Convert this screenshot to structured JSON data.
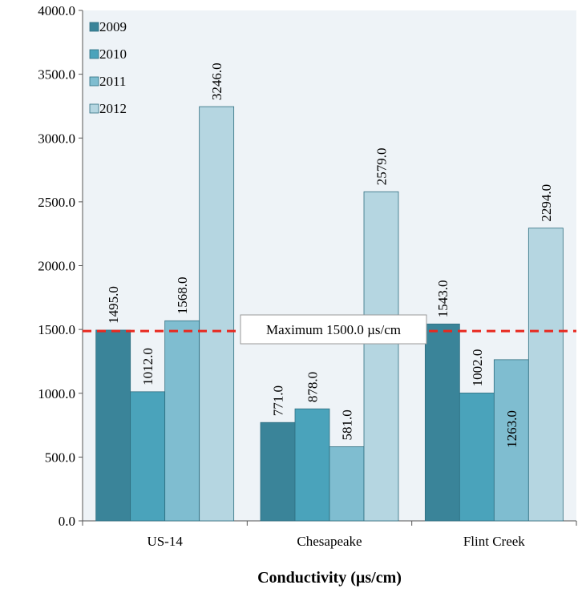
{
  "chart_data": {
    "type": "bar",
    "title": "",
    "xlabel": "Conductivity (µs/cm)",
    "ylabel": "",
    "ylim": [
      0,
      4000
    ],
    "yticks": [
      "0.0",
      "500.0",
      "1000.0",
      "1500.0",
      "2000.0",
      "2500.0",
      "3000.0",
      "3500.0",
      "4000.0"
    ],
    "categories": [
      "US-14",
      "Chesapeake",
      "Flint Creek"
    ],
    "series": [
      {
        "name": "2009",
        "values": [
          1495.0,
          771.0,
          1543.0
        ],
        "labels": [
          "1495.0",
          "771.0",
          "1543.0"
        ],
        "color": "#3a8499"
      },
      {
        "name": "2010",
        "values": [
          1012.0,
          878.0,
          1002.0
        ],
        "labels": [
          "1012.0",
          "878.0",
          "1002.0"
        ],
        "color": "#4aa3bb"
      },
      {
        "name": "2011",
        "values": [
          1568.0,
          581.0,
          1263.0
        ],
        "labels": [
          "1568.0",
          "581.0",
          "1263.0"
        ],
        "color": "#7fbdd0"
      },
      {
        "name": "2012",
        "values": [
          3246.0,
          2579.0,
          2294.0
        ],
        "labels": [
          "3246.0",
          "2579.0",
          "2294.0"
        ],
        "color": "#b5d6e1"
      }
    ],
    "threshold": {
      "value": 1500,
      "label": "Maximum 1500.0 µs/cm",
      "color": "#e8281e"
    },
    "plot_background": "#eef3f7",
    "grid": false,
    "legend_position": "top-left"
  }
}
